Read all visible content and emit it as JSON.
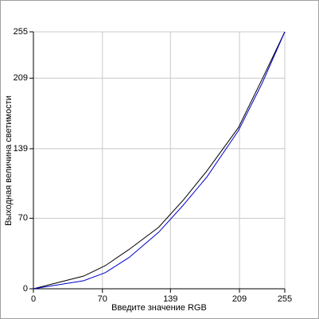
{
  "chart_data": {
    "type": "line",
    "x_label": "Введите значение RGB",
    "y_label": "Выходная величина светимости",
    "x": [
      0,
      51,
      73,
      97,
      127,
      152,
      176,
      208,
      232,
      255
    ],
    "series": [
      {
        "color": "#000000",
        "values": [
          0,
          12.6,
          23,
          39,
          61,
          88,
          117,
          160,
          208,
          255
        ]
      },
      {
        "color": "#0000cc",
        "values": [
          0,
          8,
          16,
          31,
          56,
          83,
          111,
          157,
          204,
          255
        ]
      }
    ],
    "xlim": [
      0,
      255
    ],
    "ylim": [
      0,
      255
    ],
    "xticks": [
      0,
      70,
      139,
      209,
      255
    ],
    "yticks": [
      0,
      70,
      139,
      209,
      255
    ],
    "grid": true
  }
}
